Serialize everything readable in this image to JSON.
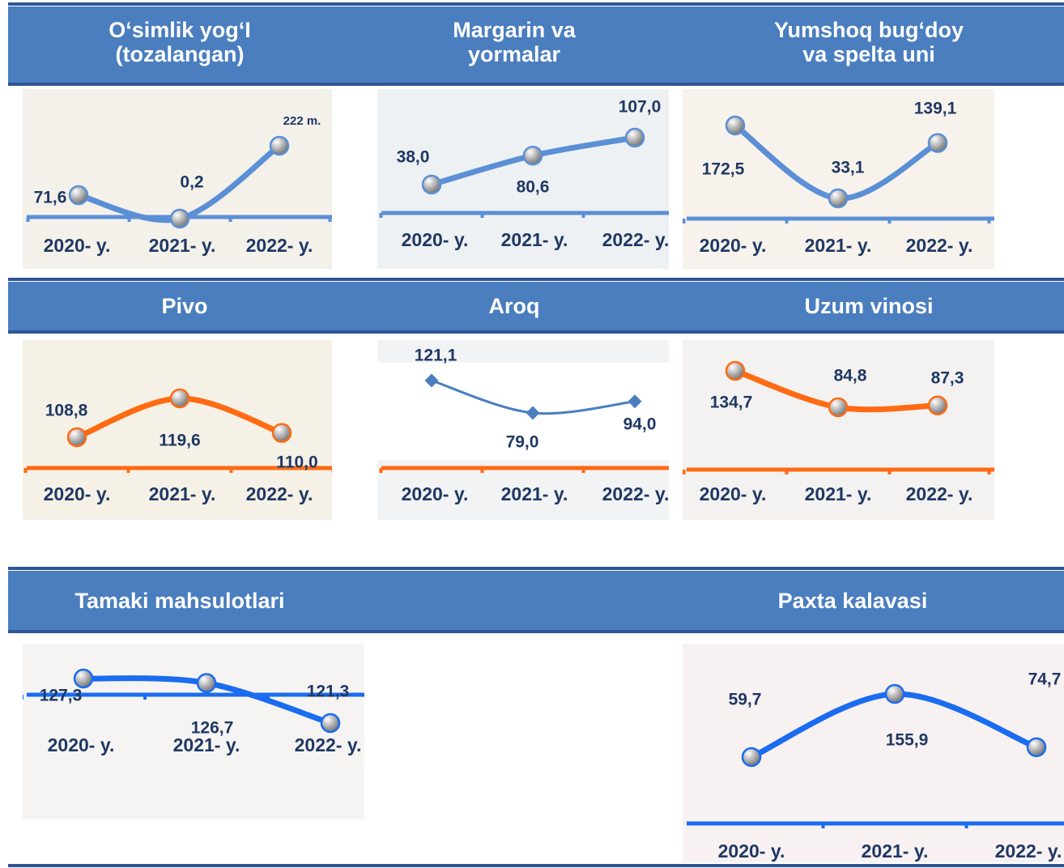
{
  "chart_data": [
    {
      "type": "line",
      "title": "O‘simlik yog‘I (tozalangan)",
      "categories": [
        "2020- y.",
        "2021- y.",
        "2022- y."
      ],
      "values": [
        71.6,
        0.2,
        222
      ],
      "value_labels": [
        "71,6",
        "0,2",
        "222  m."
      ],
      "color": "#5b8fd6",
      "marker": "circle"
    },
    {
      "type": "line",
      "title": "Margarin va yormalar",
      "categories": [
        "2020- y.",
        "2021- y.",
        "2022- y."
      ],
      "values": [
        38.0,
        80.6,
        107.0
      ],
      "value_labels": [
        "38,0",
        "80,6",
        "107,0"
      ],
      "color": "#5b8fd6",
      "marker": "circle"
    },
    {
      "type": "line",
      "title": "Yumshoq bug‘doy va spelta uni",
      "categories": [
        "2020- y.",
        "2021- y.",
        "2022- y."
      ],
      "values": [
        172.5,
        33.1,
        139.1
      ],
      "value_labels": [
        "172,5",
        "33,1",
        "139,1"
      ],
      "color": "#5b8fd6",
      "marker": "circle"
    },
    {
      "type": "line",
      "title": "Pivo",
      "categories": [
        "2020- y.",
        "2021- y.",
        "2022- y."
      ],
      "values": [
        108.8,
        119.6,
        110.0
      ],
      "value_labels": [
        "108,8",
        "119,6",
        "110,0"
      ],
      "color": "#ff6a13",
      "marker": "circle"
    },
    {
      "type": "line",
      "title": "Aroq",
      "categories": [
        "2020- y.",
        "2021- y.",
        "2022- y."
      ],
      "values": [
        121.1,
        79.0,
        94.0
      ],
      "value_labels": [
        "121,1",
        "79,0",
        "94,0"
      ],
      "color": "#4a7ebf",
      "marker": "diamond"
    },
    {
      "type": "line",
      "title": "Uzum vinosi",
      "categories": [
        "2020- y.",
        "2021- y.",
        "2022- y."
      ],
      "values": [
        134.7,
        84.8,
        87.3
      ],
      "value_labels": [
        "134,7",
        "84,8",
        "87,3"
      ],
      "color": "#ff6a13",
      "marker": "circle"
    },
    {
      "type": "line",
      "title": "Tamaki mahsulotlari",
      "categories": [
        "2020- y.",
        "2021- y.",
        "2022- y."
      ],
      "values": [
        127.3,
        126.7,
        121.3
      ],
      "value_labels": [
        "127,3",
        "126,7",
        "121,3"
      ],
      "color": "#1a6cf0",
      "marker": "circle"
    },
    {
      "type": "line",
      "title": "Paxta kalavasi",
      "categories": [
        "2020- y.",
        "2021- y.",
        "2022- y."
      ],
      "values": [
        59.7,
        155.9,
        74.7
      ],
      "value_labels": [
        "59,7",
        "155,9",
        "74,7"
      ],
      "color": "#1a6cf0",
      "marker": "circle"
    }
  ]
}
